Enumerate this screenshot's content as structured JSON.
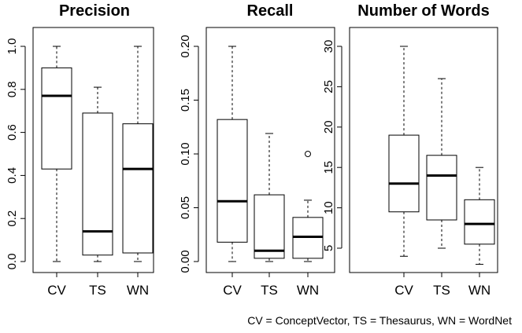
{
  "chart_data": [
    {
      "type": "box",
      "title": "Precision",
      "categories": [
        "CV",
        "TS",
        "WN"
      ],
      "ylim": [
        0,
        1
      ],
      "yticks": [
        "0.0",
        "0.2",
        "0.4",
        "0.6",
        "0.8",
        "1.0"
      ],
      "boxes": [
        {
          "category": "CV",
          "min": 0.0,
          "q1": 0.43,
          "median": 0.77,
          "q3": 0.9,
          "max": 1.0,
          "outliers": []
        },
        {
          "category": "TS",
          "min": 0.0,
          "q1": 0.03,
          "median": 0.14,
          "q3": 0.69,
          "max": 0.81,
          "outliers": []
        },
        {
          "category": "WN",
          "min": 0.0,
          "q1": 0.04,
          "median": 0.43,
          "q3": 0.64,
          "max": 1.0,
          "outliers": []
        }
      ]
    },
    {
      "type": "box",
      "title": "Recall",
      "categories": [
        "CV",
        "TS",
        "WN"
      ],
      "ylim": [
        0,
        0.2
      ],
      "yticks": [
        "0.00",
        "0.05",
        "0.10",
        "0.15",
        "0.20"
      ],
      "boxes": [
        {
          "category": "CV",
          "min": 0.0,
          "q1": 0.018,
          "median": 0.056,
          "q3": 0.132,
          "max": 0.2,
          "outliers": []
        },
        {
          "category": "TS",
          "min": 0.0,
          "q1": 0.003,
          "median": 0.01,
          "q3": 0.062,
          "max": 0.119,
          "outliers": []
        },
        {
          "category": "WN",
          "min": 0.0,
          "q1": 0.003,
          "median": 0.023,
          "q3": 0.041,
          "max": 0.057,
          "outliers": [
            0.1
          ]
        }
      ]
    },
    {
      "type": "box",
      "title": "Number of Words",
      "categories": [
        "CV",
        "TS",
        "WN"
      ],
      "ylim": [
        3,
        30
      ],
      "yticks": [
        "5",
        "10",
        "15",
        "20",
        "25",
        "30"
      ],
      "boxes": [
        {
          "category": "CV",
          "min": 4,
          "q1": 9.5,
          "median": 13,
          "q3": 19,
          "max": 30,
          "outliers": []
        },
        {
          "category": "TS",
          "min": 5,
          "q1": 8.5,
          "median": 14,
          "q3": 16.5,
          "max": 26,
          "outliers": []
        },
        {
          "category": "WN",
          "min": 3,
          "q1": 5.5,
          "median": 8,
          "q3": 11,
          "max": 15,
          "outliers": []
        }
      ]
    }
  ],
  "caption": "CV = ConceptVector,  TS = Thesaurus,  WN = WordNet"
}
